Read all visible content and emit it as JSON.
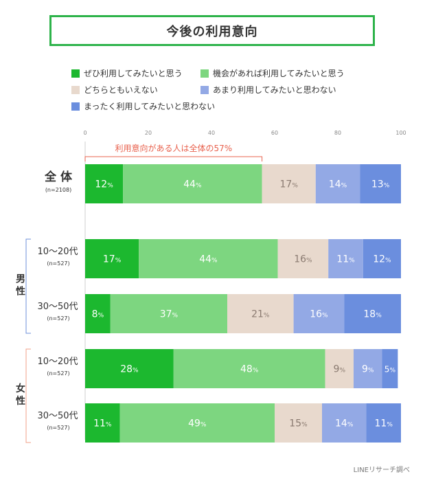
{
  "title": "今後の利用意向",
  "source": "LINEリサーチ調べ",
  "bracket_label": "利用意向がある人は全体の57%",
  "colors": {
    "title_border": "#2db34a",
    "bracket": "#e8604c",
    "male_bracket": "#6c8fd8",
    "female_bracket": "#f0a08a"
  },
  "chart_data": {
    "type": "bar",
    "orientation": "horizontal-stacked-100",
    "xlim": [
      0,
      100
    ],
    "ticks": [
      0,
      20,
      40,
      60,
      80,
      100
    ],
    "legend_placement": "top",
    "series": [
      {
        "name": "ぜひ利用してみたいと思う",
        "color": "#1cb82f"
      },
      {
        "name": "機会があれば利用してみたいと思う",
        "color": "#7dd680"
      },
      {
        "name": "どちらともいえない",
        "color": "#e8d9cd"
      },
      {
        "name": "あまり利用してみたいと思わない",
        "color": "#93a9e5"
      },
      {
        "name": "まったく利用してみたいと思わない",
        "color": "#6b8ede"
      }
    ],
    "rows": [
      {
        "label": "全 体",
        "n": "(n=2108)",
        "values": [
          12,
          44,
          17,
          14,
          13
        ]
      },
      {
        "label": "10～20代",
        "n": "(n=527)",
        "values": [
          17,
          44,
          16,
          11,
          12
        ]
      },
      {
        "label": "30～50代",
        "n": "(n=527)",
        "values": [
          8,
          37,
          21,
          16,
          18
        ]
      },
      {
        "label": "10～20代",
        "n": "(n=527)",
        "values": [
          28,
          48,
          9,
          9,
          5
        ]
      },
      {
        "label": "30～50代",
        "n": "(n=527)",
        "values": [
          11,
          49,
          15,
          14,
          11
        ]
      }
    ],
    "groups": [
      {
        "label": "男\n性",
        "rows": [
          1,
          2
        ]
      },
      {
        "label": "女\n性",
        "rows": [
          3,
          4
        ]
      }
    ]
  }
}
